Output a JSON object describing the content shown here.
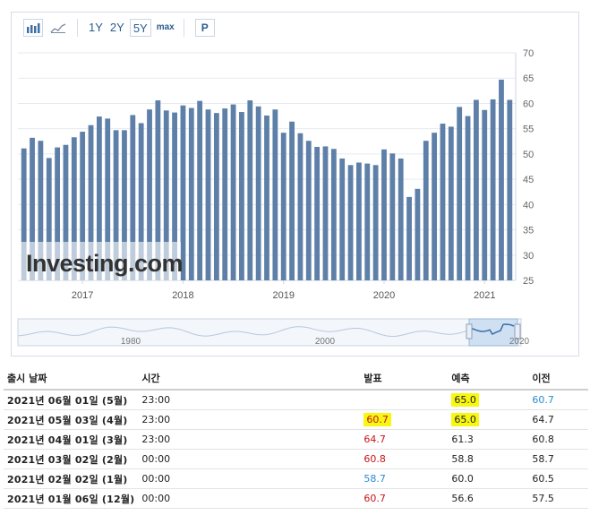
{
  "toolbar": {
    "bar_chart_icon": "bar-chart-icon",
    "line_chart_icon": "line-chart-icon",
    "ranges": [
      "1Y",
      "2Y",
      "5Y",
      "max"
    ],
    "active_range": "5Y",
    "print_label": "P"
  },
  "chart_data": {
    "type": "bar",
    "title": "",
    "xlabel": "",
    "ylabel": "",
    "ylim": [
      25,
      70
    ],
    "y_ticks": [
      25,
      30,
      35,
      40,
      45,
      50,
      55,
      60,
      65,
      70
    ],
    "x_tick_labels": [
      "2017",
      "2018",
      "2019",
      "2020",
      "2021"
    ],
    "categories": [
      "2016-06",
      "2016-07",
      "2016-08",
      "2016-09",
      "2016-10",
      "2016-11",
      "2016-12",
      "2017-01",
      "2017-02",
      "2017-03",
      "2017-04",
      "2017-05",
      "2017-06",
      "2017-07",
      "2017-08",
      "2017-09",
      "2017-10",
      "2017-11",
      "2017-12",
      "2018-01",
      "2018-02",
      "2018-03",
      "2018-04",
      "2018-05",
      "2018-06",
      "2018-07",
      "2018-08",
      "2018-09",
      "2018-10",
      "2018-11",
      "2018-12",
      "2019-01",
      "2019-02",
      "2019-03",
      "2019-04",
      "2019-05",
      "2019-06",
      "2019-07",
      "2019-08",
      "2019-09",
      "2019-10",
      "2019-11",
      "2019-12",
      "2020-01",
      "2020-02",
      "2020-03",
      "2020-04",
      "2020-05",
      "2020-06",
      "2020-07",
      "2020-08",
      "2020-09",
      "2020-10",
      "2020-11",
      "2020-12",
      "2021-01",
      "2021-02",
      "2021-03",
      "2021-04"
    ],
    "values": [
      51.1,
      53.2,
      52.6,
      49.2,
      51.3,
      51.8,
      53.3,
      54.4,
      55.7,
      57.4,
      57.0,
      54.7,
      54.7,
      57.7,
      56.1,
      58.8,
      60.6,
      58.6,
      58.2,
      59.6,
      59.1,
      60.5,
      58.8,
      58.1,
      59.0,
      59.8,
      58.3,
      60.6,
      59.4,
      57.6,
      58.8,
      54.2,
      56.4,
      54.1,
      52.6,
      51.4,
      51.5,
      51.0,
      49.1,
      47.8,
      48.3,
      48.1,
      47.8,
      50.9,
      50.1,
      49.1,
      41.5,
      43.1,
      52.6,
      54.2,
      56.0,
      55.4,
      59.3,
      57.5,
      60.7,
      58.7,
      60.8,
      64.7,
      60.7
    ],
    "navigator": {
      "x_tick_labels": [
        "1980",
        "2000",
        "2020"
      ]
    },
    "watermark": "Investing.com",
    "colors": {
      "bar": "#5d7fa8",
      "grid": "#e6eaf0",
      "axis_text": "#666666"
    }
  },
  "calendar": {
    "headers": {
      "release_date": "출시 날짜",
      "time": "시간",
      "actual": "발표",
      "forecast": "예측",
      "previous": "이전"
    },
    "rows": [
      {
        "date": "2021년 06월 01일 (5월)",
        "time": "23:00",
        "actual": "",
        "actual_color": "blk",
        "forecast": "65.0",
        "forecast_hl": true,
        "previous": "60.7",
        "previous_color": "blue"
      },
      {
        "date": "2021년 05월 03일 (4월)",
        "time": "23:00",
        "actual": "60.7",
        "actual_color": "red",
        "actual_hl": true,
        "forecast": "65.0",
        "forecast_hl": true,
        "previous": "64.7",
        "previous_color": "blk"
      },
      {
        "date": "2021년 04월 01일 (3월)",
        "time": "23:00",
        "actual": "64.7",
        "actual_color": "red",
        "forecast": "61.3",
        "previous": "60.8",
        "previous_color": "blk"
      },
      {
        "date": "2021년 03월 02일 (2월)",
        "time": "00:00",
        "actual": "60.8",
        "actual_color": "red",
        "forecast": "58.8",
        "previous": "58.7",
        "previous_color": "blk"
      },
      {
        "date": "2021년 02월 02일 (1월)",
        "time": "00:00",
        "actual": "58.7",
        "actual_color": "blue",
        "forecast": "60.0",
        "previous": "60.5",
        "previous_color": "blk"
      },
      {
        "date": "2021년 01월 06일 (12월)",
        "time": "00:00",
        "actual": "60.7",
        "actual_color": "red",
        "forecast": "56.6",
        "previous": "57.5",
        "previous_color": "blk"
      }
    ]
  }
}
